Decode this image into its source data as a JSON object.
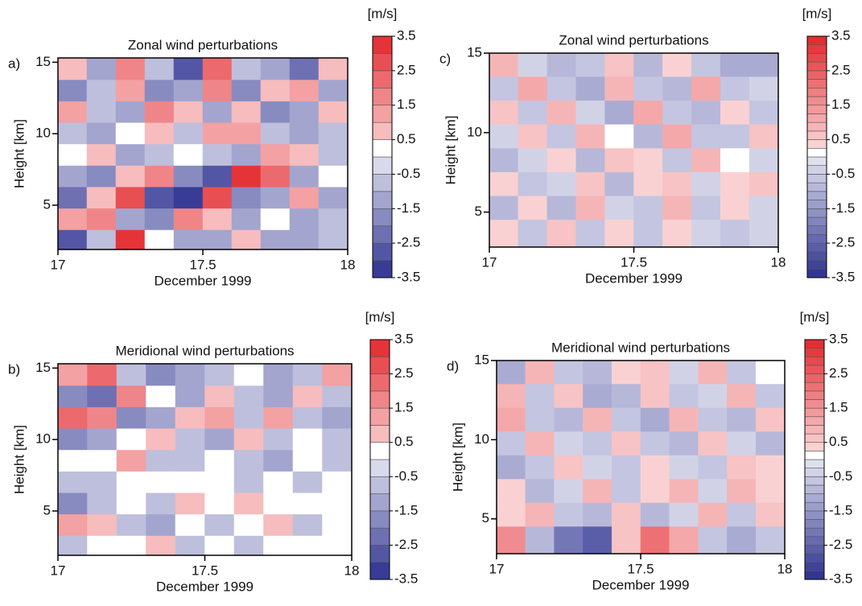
{
  "chart_data": [
    {
      "type": "contour",
      "panel_label": "a)",
      "title": "Zonal wind perturbations",
      "xlabel": "December 1999",
      "ylabel": "Height [km]",
      "xlim": [
        17,
        18
      ],
      "xticks": [
        17,
        17.5,
        18
      ],
      "ylim": [
        1.9,
        15.3
      ],
      "yticks": [
        5,
        10,
        15
      ],
      "x": [
        17.05,
        17.15,
        17.25,
        17.35,
        17.45,
        17.55,
        17.65,
        17.75,
        17.85,
        17.95
      ],
      "y": [
        14.5,
        13,
        11.5,
        10,
        8.5,
        7,
        5.5,
        4,
        2.5
      ],
      "z": [
        [
          0.5,
          -1,
          1.5,
          -0.5,
          -2.5,
          2,
          -0.5,
          -1,
          -2,
          0.5
        ],
        [
          -1.5,
          -0.5,
          1,
          -1.5,
          -1,
          1.5,
          -1.5,
          0.5,
          1,
          -1
        ],
        [
          1,
          -0.5,
          -1,
          1.5,
          0.5,
          -1,
          0.5,
          -1.5,
          -1,
          0.5
        ],
        [
          -0.5,
          -1,
          0,
          0.5,
          -0.5,
          1,
          1,
          -0.5,
          -1,
          -0.5
        ],
        [
          0,
          0.5,
          -1,
          -0.5,
          0,
          -0.5,
          -1,
          1,
          0.5,
          -0.5
        ],
        [
          -1,
          -1.5,
          0.5,
          1.5,
          -1.5,
          -2.5,
          3,
          2,
          -1,
          0
        ],
        [
          -2,
          0.5,
          2.5,
          -2.5,
          -3,
          2.5,
          -1.5,
          -1,
          1,
          -1
        ],
        [
          1,
          1.5,
          -1,
          -1.5,
          1.5,
          0.5,
          -1,
          0,
          -1,
          -0.5
        ],
        [
          -2.5,
          -0.5,
          3,
          0,
          -1,
          -1,
          0.5,
          -1,
          -1,
          -0.5
        ]
      ],
      "colorbar_unit": "[m/s]",
      "clim": [
        -3.5,
        3.5
      ],
      "level_step": 0.5,
      "cbar_ticks": [
        3.5,
        2.5,
        1.5,
        0.5,
        -0.5,
        -1.5,
        -2.5,
        -3.5
      ],
      "cmap": {
        "negative": "#2b2f8f",
        "zero": "#ffffff",
        "positive": "#e3262b"
      }
    },
    {
      "type": "contour",
      "panel_label": "c)",
      "title": "Zonal wind perturbations",
      "xlabel": "December 1999",
      "ylabel": "Height [km]",
      "xlim": [
        17,
        18
      ],
      "xticks": [
        17,
        17.5,
        18
      ],
      "ylim": [
        2.8,
        15
      ],
      "yticks": [
        5,
        10,
        15
      ],
      "x": [
        17.05,
        17.15,
        17.25,
        17.35,
        17.45,
        17.55,
        17.65,
        17.75,
        17.85,
        17.95
      ],
      "y": [
        14.25,
        12.75,
        11.25,
        9.75,
        8.25,
        6.75,
        5.25,
        3.75
      ],
      "z": [
        [
          0.75,
          -0.25,
          -0.75,
          -0.5,
          0.5,
          -0.75,
          0.25,
          -0.5,
          -1,
          -1
        ],
        [
          -0.5,
          1,
          -0.5,
          -1,
          0.75,
          -0.5,
          -0.75,
          1,
          -0.5,
          -0.25
        ],
        [
          0.5,
          -0.5,
          0.75,
          -0.25,
          -1,
          1,
          -0.5,
          -0.75,
          0.25,
          -0.5
        ],
        [
          -0.25,
          0.5,
          -0.5,
          0.75,
          0,
          -0.75,
          1,
          -0.5,
          -0.5,
          0.5
        ],
        [
          -0.75,
          -0.25,
          0.25,
          -0.75,
          0.5,
          0.25,
          -0.5,
          0.75,
          0,
          -0.25
        ],
        [
          0.25,
          -0.5,
          -0.25,
          0.5,
          -0.75,
          0.25,
          0.5,
          -0.25,
          0.25,
          0.5
        ],
        [
          -0.75,
          0.25,
          -0.75,
          0.75,
          -0.25,
          -0.5,
          0.75,
          -0.5,
          0.25,
          -0.25
        ],
        [
          0.25,
          -0.5,
          0.5,
          -0.5,
          0.25,
          -0.5,
          0.25,
          -0.25,
          -0.5,
          -0.25
        ]
      ],
      "colorbar_unit": "[m/s]",
      "clim": [
        -3.5,
        3.5
      ],
      "level_step": 0.25,
      "cbar_ticks": [
        3.5,
        2.5,
        1.5,
        0.5,
        -0.5,
        -1.5,
        -2.5,
        -3.5
      ],
      "cmap": {
        "negative": "#2b2f8f",
        "zero": "#ffffff",
        "positive": "#e3262b"
      }
    },
    {
      "type": "contour",
      "panel_label": "b)",
      "title": "Meridional wind  perturbations",
      "xlabel": "December 1999",
      "ylabel": "Height [km]",
      "xlim": [
        17,
        18
      ],
      "xticks": [
        17,
        17.5,
        18
      ],
      "ylim": [
        1.9,
        15.3
      ],
      "yticks": [
        5,
        10,
        15
      ],
      "x": [
        17.05,
        17.15,
        17.25,
        17.35,
        17.45,
        17.55,
        17.65,
        17.75,
        17.85,
        17.95
      ],
      "y": [
        14.5,
        13,
        11.5,
        10,
        8.5,
        7,
        5.5,
        4,
        2.5
      ],
      "z": [
        [
          1,
          2,
          -0.5,
          -1.5,
          -1,
          -0.5,
          0,
          -1,
          -0.5,
          1
        ],
        [
          -1.5,
          -2,
          1.5,
          0,
          -1,
          0.5,
          -0.5,
          -1,
          0.5,
          -0.5
        ],
        [
          2,
          1.5,
          -1.5,
          -1,
          0.5,
          1,
          -0.5,
          1,
          -0.5,
          -1
        ],
        [
          -1.5,
          -1,
          0,
          0.5,
          -0.5,
          -1,
          0.5,
          -0.5,
          0,
          -0.5
        ],
        [
          0,
          0,
          1,
          -0.5,
          -0.5,
          0,
          -0.5,
          -1,
          0,
          -0.5
        ],
        [
          -0.5,
          -0.5,
          0,
          0,
          0,
          0,
          -0.5,
          0,
          -0.5,
          0
        ],
        [
          -1.5,
          -0.5,
          0,
          -0.5,
          0.5,
          0,
          0.5,
          0,
          0,
          0
        ],
        [
          1,
          0.5,
          -0.5,
          -1,
          0,
          -0.5,
          0,
          0.5,
          -0.5,
          0
        ],
        [
          -0.5,
          0,
          0,
          0.5,
          -0.5,
          0,
          -0.5,
          0,
          0,
          0
        ]
      ],
      "colorbar_unit": "[m/s]",
      "clim": [
        -3.5,
        3.5
      ],
      "level_step": 0.5,
      "cbar_ticks": [
        3.5,
        2.5,
        1.5,
        0.5,
        -0.5,
        -1.5,
        -2.5,
        -3.5
      ],
      "cmap": {
        "negative": "#2b2f8f",
        "zero": "#ffffff",
        "positive": "#e3262b"
      }
    },
    {
      "type": "contour",
      "panel_label": "d)",
      "title": "Meridional wind  perturbations",
      "xlabel": "December 1999",
      "ylabel": "Height [km]",
      "xlim": [
        17,
        18
      ],
      "xticks": [
        17,
        17.5,
        18
      ],
      "ylim": [
        2.8,
        15
      ],
      "yticks": [
        5,
        10,
        15
      ],
      "x": [
        17.05,
        17.15,
        17.25,
        17.35,
        17.45,
        17.55,
        17.65,
        17.75,
        17.85,
        17.95
      ],
      "y": [
        14.25,
        12.75,
        11.25,
        9.75,
        8.25,
        6.75,
        5.25,
        3.75
      ],
      "z": [
        [
          -1,
          0.75,
          -0.5,
          -0.75,
          0.25,
          0.5,
          -0.25,
          0.75,
          -0.5,
          0
        ],
        [
          0.75,
          -0.5,
          0.5,
          -1,
          -0.75,
          0.5,
          -0.5,
          -0.25,
          0.75,
          -0.5
        ],
        [
          1,
          -0.5,
          -0.75,
          0.75,
          -0.5,
          -1,
          0.75,
          -0.5,
          -0.75,
          0.5
        ],
        [
          -0.5,
          0.75,
          -0.25,
          -0.5,
          0.5,
          -0.5,
          -0.75,
          0.5,
          -0.25,
          -0.75
        ],
        [
          -1,
          -0.5,
          0.5,
          -0.25,
          -0.5,
          0.25,
          -0.25,
          -0.5,
          0.5,
          0.25
        ],
        [
          0.25,
          -0.75,
          -0.25,
          0.75,
          -0.5,
          0.25,
          0.75,
          -0.25,
          0.75,
          0.25
        ],
        [
          0.25,
          0.75,
          -0.5,
          -0.75,
          0.5,
          -0.75,
          -0.25,
          0.75,
          -0.5,
          0.5
        ],
        [
          1.5,
          -0.75,
          -2,
          -2.5,
          0.5,
          2,
          1,
          -0.5,
          -1,
          -0.5
        ]
      ],
      "colorbar_unit": "[m/s]",
      "clim": [
        -3.5,
        3.5
      ],
      "level_step": 0.25,
      "cbar_ticks": [
        3.5,
        2.5,
        1.5,
        0.5,
        -0.5,
        -1.5,
        -2.5,
        -3.5
      ],
      "cmap": {
        "negative": "#2b2f8f",
        "zero": "#ffffff",
        "positive": "#e3262b"
      }
    }
  ]
}
